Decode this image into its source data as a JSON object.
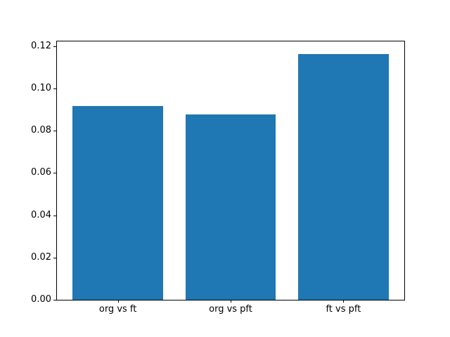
{
  "chart_data": {
    "type": "bar",
    "categories": [
      "org vs ft",
      "org vs pft",
      "ft vs pft"
    ],
    "values": [
      0.0915,
      0.0878,
      0.1163
    ],
    "title": "",
    "xlabel": "",
    "ylabel": "",
    "ylim": [
      0,
      0.1222
    ],
    "xlim": [
      -0.54,
      2.54
    ],
    "yticks": [
      0.0,
      0.02,
      0.04,
      0.06,
      0.08,
      0.1,
      0.12
    ],
    "ytick_labels": [
      "0.00",
      "0.02",
      "0.04",
      "0.06",
      "0.08",
      "0.10",
      "0.12"
    ],
    "bar_width": 0.8,
    "bar_color": "#1f77b4",
    "background_color": "#ffffff",
    "spine_color": "#000000",
    "grid": false,
    "legend": null
  }
}
